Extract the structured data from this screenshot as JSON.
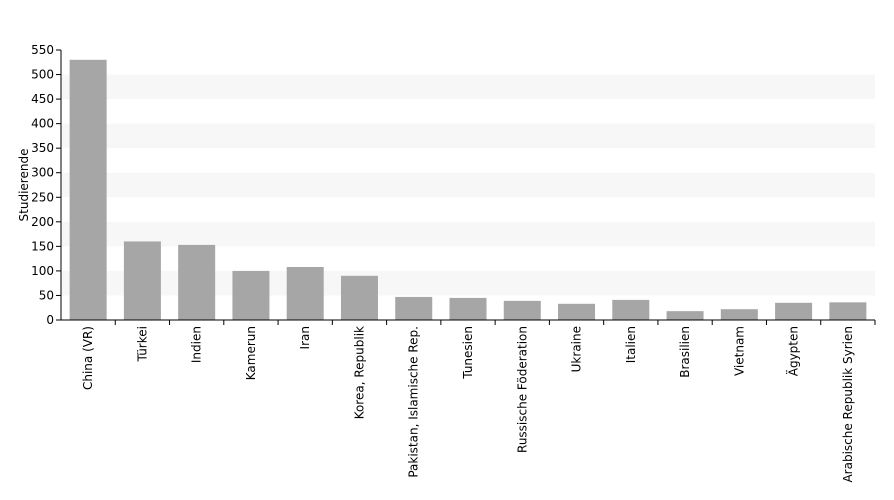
{
  "chart_data": {
    "type": "bar",
    "y_label": "Studierende",
    "categories": [
      "China (VR)",
      "Türkei",
      "Indien",
      "Kamerun",
      "Iran",
      "Korea, Republik",
      "Pakistan, Islamische Rep.",
      "Tunesien",
      "Russische Föderation",
      "Ukraine",
      "Italien",
      "Brasilien",
      "Vietnam",
      "Ägypten",
      "Arabische Republik Syrien"
    ],
    "values": [
      530,
      160,
      153,
      100,
      108,
      90,
      47,
      45,
      39,
      33,
      41,
      18,
      22,
      35,
      36
    ],
    "color": "#a6a6a6",
    "ylim": [
      0,
      550
    ],
    "yticks": [
      0,
      50,
      100,
      150,
      200,
      250,
      300,
      350,
      400,
      450,
      500,
      550
    ],
    "grid": true
  }
}
